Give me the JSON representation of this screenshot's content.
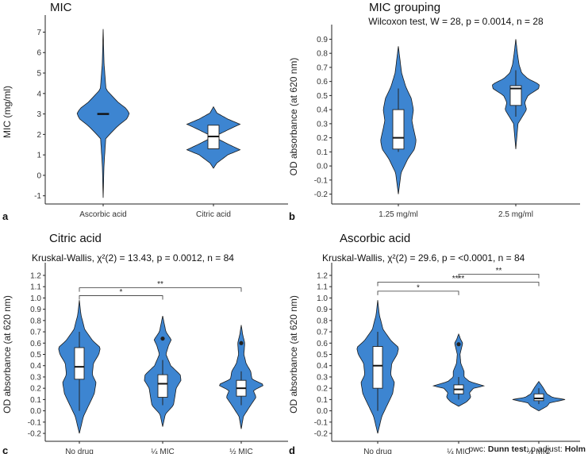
{
  "figure": {
    "footnote_prefix": "pwc: ",
    "footnote_test": "Dunn test",
    "footnote_mid": "; p.adjust: ",
    "footnote_method": "Holm"
  },
  "chart_data": [
    {
      "panel": "a",
      "type": "violin",
      "title": "MIC",
      "subtitle": "",
      "ylabel": "MIC (mg/ml)",
      "ylim": [
        -1.4,
        7.6
      ],
      "ticks": [
        -1,
        0,
        1,
        2,
        3,
        4,
        5,
        6,
        7
      ],
      "tick_labels": [
        "-1",
        "0",
        "1",
        "2",
        "3",
        "4",
        "5",
        "6",
        "7"
      ],
      "categories": [
        "Ascorbic acid",
        "Citric acid"
      ],
      "violins": [
        {
          "ymin": -1.1,
          "ymax": 7.15,
          "profile": [
            [
              -1.1,
              0.0
            ],
            [
              0.5,
              0.03
            ],
            [
              1.8,
              0.09
            ],
            [
              2.4,
              0.5
            ],
            [
              2.75,
              0.82
            ],
            [
              3.0,
              0.92
            ],
            [
              3.25,
              0.82
            ],
            [
              3.6,
              0.5
            ],
            [
              4.2,
              0.1
            ],
            [
              5.5,
              0.03
            ],
            [
              7.15,
              0.0
            ]
          ],
          "box": {
            "q1": 2.97,
            "median": 3.0,
            "q3": 3.03,
            "lower": 3.0,
            "upper": 3.0
          },
          "outliers": []
        },
        {
          "ymin": 0.35,
          "ymax": 3.35,
          "profile": [
            [
              0.35,
              0.0
            ],
            [
              0.6,
              0.12
            ],
            [
              1.0,
              0.5
            ],
            [
              1.25,
              0.93
            ],
            [
              1.5,
              0.55
            ],
            [
              1.75,
              0.2
            ],
            [
              2.0,
              0.18
            ],
            [
              2.25,
              0.55
            ],
            [
              2.5,
              0.93
            ],
            [
              2.75,
              0.5
            ],
            [
              3.05,
              0.12
            ],
            [
              3.35,
              0.0
            ]
          ],
          "box": {
            "q1": 1.3,
            "median": 1.9,
            "q3": 2.45,
            "lower": 1.3,
            "upper": 2.45
          },
          "outliers": []
        }
      ],
      "brackets": []
    },
    {
      "panel": "b",
      "type": "violin",
      "title": "MIC grouping",
      "subtitle": "Wilcoxon test, W = 28, p = 0.0014, n = 28",
      "ylabel": "OD absorbance (at 620 nm)",
      "ylim": [
        -0.27,
        0.97
      ],
      "ticks": [
        -0.2,
        -0.1,
        0,
        0.1,
        0.2,
        0.3,
        0.4,
        0.5,
        0.6,
        0.7,
        0.8,
        0.9
      ],
      "tick_labels": [
        "-0.2",
        "-0.1",
        "0.0",
        "0.1",
        "0.2",
        "0.3",
        "0.4",
        "0.5",
        "0.6",
        "0.7",
        "0.8",
        "0.9"
      ],
      "categories": [
        "1.25 mg/ml",
        "2.5 mg/ml"
      ],
      "violins": [
        {
          "ymin": -0.2,
          "ymax": 0.85,
          "profile": [
            [
              -0.2,
              0.0
            ],
            [
              -0.05,
              0.1
            ],
            [
              0.05,
              0.35
            ],
            [
              0.12,
              0.6
            ],
            [
              0.18,
              0.66
            ],
            [
              0.25,
              0.58
            ],
            [
              0.32,
              0.5
            ],
            [
              0.4,
              0.56
            ],
            [
              0.48,
              0.48
            ],
            [
              0.56,
              0.28
            ],
            [
              0.66,
              0.12
            ],
            [
              0.85,
              0.0
            ]
          ],
          "box": {
            "q1": 0.12,
            "median": 0.2,
            "q3": 0.4,
            "lower": 0.1,
            "upper": 0.55
          },
          "outliers": []
        },
        {
          "ymin": 0.12,
          "ymax": 0.9,
          "profile": [
            [
              0.12,
              0.0
            ],
            [
              0.3,
              0.08
            ],
            [
              0.4,
              0.4
            ],
            [
              0.45,
              0.33
            ],
            [
              0.5,
              0.45
            ],
            [
              0.55,
              0.85
            ],
            [
              0.58,
              0.87
            ],
            [
              0.62,
              0.45
            ],
            [
              0.66,
              0.22
            ],
            [
              0.72,
              0.12
            ],
            [
              0.8,
              0.06
            ],
            [
              0.9,
              0.0
            ]
          ],
          "box": {
            "q1": 0.43,
            "median": 0.55,
            "q3": 0.57,
            "lower": 0.35,
            "upper": 0.68
          },
          "outliers": []
        }
      ],
      "brackets": []
    },
    {
      "panel": "c",
      "type": "violin",
      "title": "Citric acid",
      "subtitle": "Kruskal-Wallis, χ²(2) = 13.43, p = 0.0012, n = 84",
      "ylabel": "OD absorbance (at 620 nm)",
      "ylim": [
        -0.27,
        1.27
      ],
      "ticks": [
        -0.2,
        -0.1,
        0,
        0.1,
        0.2,
        0.3,
        0.4,
        0.5,
        0.6,
        0.7,
        0.8,
        0.9,
        1.0,
        1.1,
        1.2
      ],
      "tick_labels": [
        "-0.2",
        "-0.1",
        "0.0",
        "0.1",
        "0.2",
        "0.3",
        "0.4",
        "0.5",
        "0.6",
        "0.7",
        "0.8",
        "0.9",
        "1.0",
        "1.1",
        "1.2"
      ],
      "categories": [
        "No drug",
        "¼ MIC",
        "½ MIC"
      ],
      "violins": [
        {
          "ymin": -0.2,
          "ymax": 0.98,
          "profile": [
            [
              -0.2,
              0.0
            ],
            [
              -0.05,
              0.15
            ],
            [
              0.05,
              0.35
            ],
            [
              0.15,
              0.55
            ],
            [
              0.25,
              0.62
            ],
            [
              0.32,
              0.48
            ],
            [
              0.42,
              0.52
            ],
            [
              0.5,
              0.72
            ],
            [
              0.56,
              0.78
            ],
            [
              0.62,
              0.5
            ],
            [
              0.72,
              0.2
            ],
            [
              0.85,
              0.06
            ],
            [
              0.98,
              0.0
            ]
          ],
          "box": {
            "q1": 0.28,
            "median": 0.39,
            "q3": 0.56,
            "lower": 0.0,
            "upper": 0.7
          },
          "outliers": []
        },
        {
          "ymin": -0.14,
          "ymax": 0.84,
          "profile": [
            [
              -0.14,
              0.0
            ],
            [
              -0.03,
              0.1
            ],
            [
              0.05,
              0.4
            ],
            [
              0.12,
              0.45
            ],
            [
              0.2,
              0.5
            ],
            [
              0.27,
              0.68
            ],
            [
              0.32,
              0.65
            ],
            [
              0.4,
              0.3
            ],
            [
              0.5,
              0.12
            ],
            [
              0.58,
              0.22
            ],
            [
              0.63,
              0.32
            ],
            [
              0.7,
              0.12
            ],
            [
              0.84,
              0.0
            ]
          ],
          "box": {
            "q1": 0.12,
            "median": 0.24,
            "q3": 0.32,
            "lower": 0.05,
            "upper": 0.45
          },
          "outliers": [
            0.64
          ]
        },
        {
          "ymin": -0.16,
          "ymax": 0.76,
          "profile": [
            [
              -0.16,
              0.0
            ],
            [
              -0.05,
              0.08
            ],
            [
              0.05,
              0.35
            ],
            [
              0.12,
              0.55
            ],
            [
              0.18,
              0.45
            ],
            [
              0.23,
              0.86
            ],
            [
              0.28,
              0.4
            ],
            [
              0.35,
              0.35
            ],
            [
              0.42,
              0.18
            ],
            [
              0.5,
              0.1
            ],
            [
              0.6,
              0.13
            ],
            [
              0.68,
              0.05
            ],
            [
              0.76,
              0.0
            ]
          ],
          "box": {
            "q1": 0.13,
            "median": 0.2,
            "q3": 0.27,
            "lower": 0.05,
            "upper": 0.35
          },
          "outliers": [
            0.6
          ]
        }
      ],
      "brackets": [
        {
          "from": 0,
          "to": 1,
          "y": 1.02,
          "label": "*"
        },
        {
          "from": 0,
          "to": 2,
          "y": 1.09,
          "label": "**"
        }
      ]
    },
    {
      "panel": "d",
      "type": "violin",
      "title": "Ascorbic acid",
      "subtitle": "Kruskal-Wallis, χ²(2) = 29.6, p = <0.0001, n = 84",
      "ylabel": "OD absorbance (at 620 nm)",
      "ylim": [
        -0.27,
        1.27
      ],
      "ticks": [
        -0.2,
        -0.1,
        0,
        0.1,
        0.2,
        0.3,
        0.4,
        0.5,
        0.6,
        0.7,
        0.8,
        0.9,
        1.0,
        1.1,
        1.2
      ],
      "tick_labels": [
        "-0.2",
        "-0.1",
        "0.0",
        "0.1",
        "0.2",
        "0.3",
        "0.4",
        "0.5",
        "0.6",
        "0.7",
        "0.8",
        "0.9",
        "1.0",
        "1.1",
        "1.2"
      ],
      "categories": [
        "No drug",
        "¼ MIC",
        "½ MIC"
      ],
      "violins": [
        {
          "ymin": -0.2,
          "ymax": 0.98,
          "profile": [
            [
              -0.2,
              0.0
            ],
            [
              -0.05,
              0.15
            ],
            [
              0.05,
              0.35
            ],
            [
              0.15,
              0.55
            ],
            [
              0.25,
              0.62
            ],
            [
              0.32,
              0.48
            ],
            [
              0.42,
              0.52
            ],
            [
              0.5,
              0.72
            ],
            [
              0.56,
              0.78
            ],
            [
              0.62,
              0.5
            ],
            [
              0.72,
              0.2
            ],
            [
              0.85,
              0.06
            ],
            [
              0.98,
              0.0
            ]
          ],
          "box": {
            "q1": 0.2,
            "median": 0.4,
            "q3": 0.57,
            "lower": 0.0,
            "upper": 0.7
          },
          "outliers": []
        },
        {
          "ymin": 0.04,
          "ymax": 0.68,
          "profile": [
            [
              0.04,
              0.0
            ],
            [
              0.08,
              0.3
            ],
            [
              0.12,
              0.45
            ],
            [
              0.16,
              0.4
            ],
            [
              0.2,
              0.55
            ],
            [
              0.22,
              0.95
            ],
            [
              0.26,
              0.4
            ],
            [
              0.3,
              0.2
            ],
            [
              0.35,
              0.2
            ],
            [
              0.42,
              0.08
            ],
            [
              0.5,
              0.05
            ],
            [
              0.57,
              0.12
            ],
            [
              0.6,
              0.15
            ],
            [
              0.63,
              0.08
            ],
            [
              0.68,
              0.0
            ]
          ],
          "box": {
            "q1": 0.15,
            "median": 0.19,
            "q3": 0.23,
            "lower": 0.1,
            "upper": 0.3
          },
          "outliers": [
            0.59
          ]
        },
        {
          "ymin": 0.0,
          "ymax": 0.26,
          "profile": [
            [
              0.0,
              0.0
            ],
            [
              0.04,
              0.3
            ],
            [
              0.07,
              0.4
            ],
            [
              0.1,
              0.98
            ],
            [
              0.12,
              0.5
            ],
            [
              0.15,
              0.3
            ],
            [
              0.19,
              0.2
            ],
            [
              0.22,
              0.12
            ],
            [
              0.26,
              0.0
            ]
          ],
          "box": {
            "q1": 0.09,
            "median": 0.11,
            "q3": 0.15,
            "lower": 0.06,
            "upper": 0.2
          },
          "outliers": []
        }
      ],
      "brackets": [
        {
          "from": 0,
          "to": 1,
          "y": 1.06,
          "label": "*"
        },
        {
          "from": 0,
          "to": 2,
          "y": 1.14,
          "label": "****"
        },
        {
          "from": 1,
          "to": 2,
          "y": 1.21,
          "label": "**"
        }
      ]
    }
  ]
}
